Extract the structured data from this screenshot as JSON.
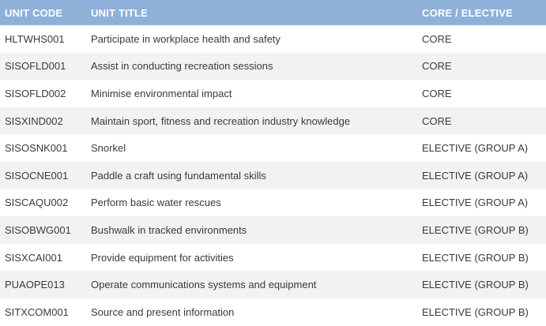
{
  "table": {
    "headers": {
      "code": "UNIT CODE",
      "title": "UNIT TITLE",
      "type": "CORE / ELECTIVE"
    },
    "rows": [
      {
        "code": "HLTWHS001",
        "title": "Participate in workplace health and safety",
        "type": "CORE"
      },
      {
        "code": "SISOFLD001",
        "title": "Assist in conducting recreation sessions",
        "type": "CORE"
      },
      {
        "code": "SISOFLD002",
        "title": "Minimise environmental impact",
        "type": "CORE"
      },
      {
        "code": "SISXIND002",
        "title": "Maintain sport, fitness and recreation industry knowledge",
        "type": "CORE"
      },
      {
        "code": "SISOSNK001",
        "title": "Snorkel",
        "type": "ELECTIVE (GROUP A)"
      },
      {
        "code": "SISOCNE001",
        "title": "Paddle a craft using fundamental skills",
        "type": "ELECTIVE (GROUP A)"
      },
      {
        "code": "SISCAQU002",
        "title": "Perform basic water rescues",
        "type": "ELECTIVE (GROUP A)"
      },
      {
        "code": "SISOBWG001",
        "title": "Bushwalk in tracked environments",
        "type": "ELECTIVE (GROUP B)"
      },
      {
        "code": "SISXCAI001",
        "title": "Provide equipment for activities",
        "type": "ELECTIVE (GROUP B)"
      },
      {
        "code": "PUAOPE013",
        "title": "Operate communications systems and equipment",
        "type": "ELECTIVE (GROUP B)"
      },
      {
        "code": "SITXCOM001",
        "title": "Source and present information",
        "type": "ELECTIVE (GROUP B)"
      }
    ]
  },
  "colors": {
    "header_background": "#8fb0d8",
    "header_text": "#ffffff",
    "stripe": "#f2f2f2"
  }
}
